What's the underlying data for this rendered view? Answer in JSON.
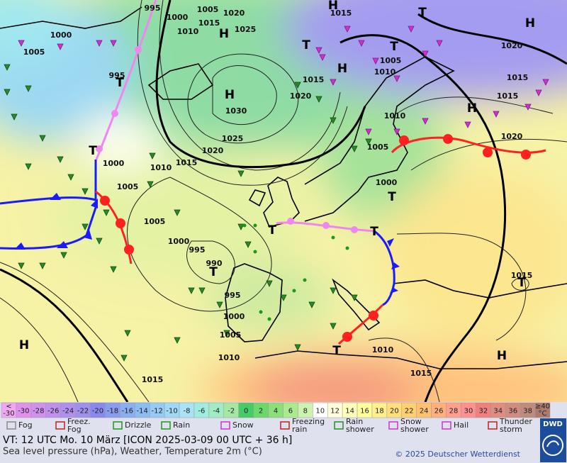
{
  "map": {
    "pressure_labels": [
      995,
      1000,
      1005,
      1020,
      1015,
      1010,
      1025,
      1000,
      1005,
      995,
      1030,
      1020,
      1025,
      1020,
      1015,
      1010,
      1000,
      1005,
      1005,
      1000,
      995,
      990,
      995,
      1000,
      1005,
      1010,
      1015,
      1015,
      1015,
      1010,
      1005,
      1010,
      1005,
      1000,
      1020,
      1015,
      1015,
      1020,
      1015,
      1010,
      1015
    ],
    "pressure_systems": [
      "H",
      "H",
      "H",
      "H",
      "T",
      "T",
      "T",
      "H",
      "H",
      "T",
      "T",
      "T",
      "T",
      "T",
      "T",
      "T",
      "H",
      "H",
      "T"
    ]
  },
  "colorbar": {
    "low_label": [
      "<",
      "-30"
    ],
    "low_color": "#f0a8f0",
    "ticks": [
      -30,
      -28,
      -26,
      -24,
      -22,
      -20,
      -18,
      -16,
      -14,
      -12,
      -10,
      -8,
      -6,
      -4,
      -2,
      0,
      2,
      4,
      6,
      8,
      10,
      12,
      14,
      16,
      18,
      20,
      22,
      24,
      26,
      28,
      30,
      32,
      34,
      36,
      38
    ],
    "colors": [
      "#e090ee",
      "#d090ee",
      "#c090ee",
      "#b090ee",
      "#a090ee",
      "#8a88ee",
      "#8a9cee",
      "#8aaef0",
      "#8cbcf2",
      "#98caf4",
      "#a0d8f6",
      "#a8e4f6",
      "#a0ece0",
      "#a0ecc4",
      "#a4e8a4",
      "#44cc66",
      "#6cd86c",
      "#8ce07c",
      "#acea90",
      "#cef2b0",
      "#ffffff",
      "#ffffdc",
      "#ffffbc",
      "#ffff9c",
      "#fff08c",
      "#ffe07c",
      "#ffd070",
      "#ffc070",
      "#ffb07c",
      "#ffa08c",
      "#ff9090",
      "#f08080",
      "#e08c80",
      "#cf8c80",
      "#bf8a80"
    ],
    "high_label": [
      "≥40",
      "°C"
    ],
    "high_color": "#ad7a70"
  },
  "legend": [
    [
      "Fog"
    ],
    [
      "Freez.",
      "Fog"
    ],
    [
      "Drizzle"
    ],
    [
      "Rain"
    ],
    [
      "Snow"
    ],
    [
      "Freezing",
      "rain"
    ],
    [
      "Rain",
      "shower"
    ],
    [
      "Snow",
      "shower"
    ],
    [
      "Hail"
    ],
    [
      "Thunder",
      "storm"
    ]
  ],
  "footer": {
    "valid_time": "VT: 12 UTC Mo.  10 März [ICON 2025-03-09  00 UTC + 36 h]",
    "description": "Sea level pressure (hPa), Weather, Temperature 2m (°C)",
    "copyright": "© 2025 Deutscher Wetterdienst",
    "logo": "DWD"
  }
}
